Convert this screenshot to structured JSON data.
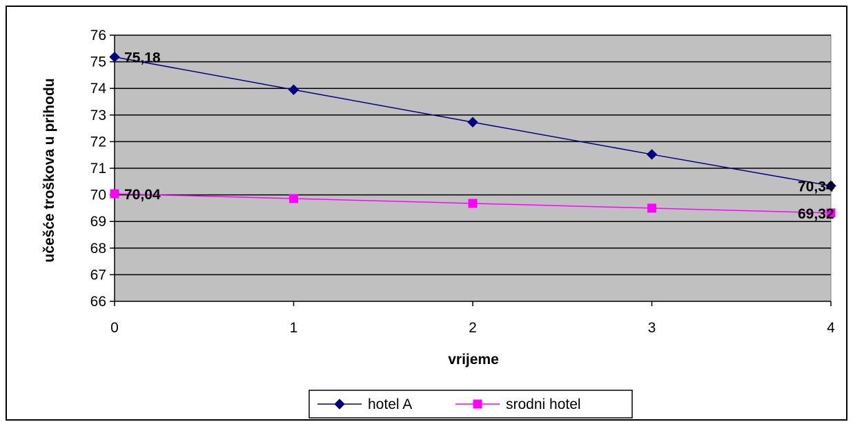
{
  "chart_data": {
    "type": "line",
    "title": "",
    "xlabel": "vrijeme",
    "ylabel": "učešće troškova u prihodu",
    "x": [
      0,
      1,
      2,
      3,
      4
    ],
    "xlim": [
      0,
      4
    ],
    "ylim": [
      66,
      76
    ],
    "xticks": [
      "0",
      "1",
      "2",
      "3",
      "4"
    ],
    "yticks": [
      "66",
      "67",
      "68",
      "69",
      "70",
      "71",
      "72",
      "73",
      "74",
      "75",
      "76"
    ],
    "grid": true,
    "legend_position": "bottom",
    "plot_background": "#c0c0c0",
    "series": [
      {
        "name": "hotel A",
        "color": "#000080",
        "marker": "diamond",
        "values": [
          75.18,
          73.95,
          72.73,
          71.52,
          70.34
        ],
        "data_labels": [
          "75,18",
          "",
          "",
          "",
          "70,34"
        ]
      },
      {
        "name": "srodni hotel",
        "color": "#ff00ff",
        "marker": "square",
        "values": [
          70.04,
          69.86,
          69.68,
          69.5,
          69.32
        ],
        "data_labels": [
          "70,04",
          "",
          "",
          "",
          "69,32"
        ]
      }
    ]
  }
}
